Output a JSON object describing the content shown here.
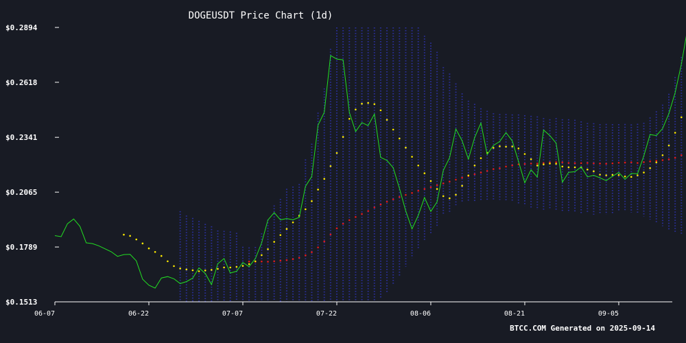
{
  "chart_data": {
    "type": "line",
    "title": "DOGEUSDT Price Chart (1d)",
    "footer": "BTCC.COM Generated on 2025-09-14",
    "ylim": [
      0.1513,
      0.2894
    ],
    "yticks": [
      "$0.1513",
      "$0.1789",
      "$0.2065",
      "$0.2341",
      "$0.2618",
      "$0.2894"
    ],
    "yticks_values": [
      0.1513,
      0.1789,
      0.2065,
      0.2341,
      0.2618,
      0.2894
    ],
    "xticks": [
      "06-07",
      "06-22",
      "07-07",
      "07-22",
      "08-06",
      "08-21",
      "09-05"
    ],
    "xticks_index": [
      0,
      15,
      30,
      45,
      60,
      75,
      90
    ],
    "x_start": "2025-06-07",
    "grid": false,
    "colors": {
      "background": "#181b24",
      "price": "#22e022",
      "ma_short": "#ffeb00",
      "ma_long": "#e01b1b",
      "band": "#2a2f9a",
      "axis": "#ffffff"
    },
    "series": [
      {
        "key": "price",
        "style": "line",
        "values": [
          0.1846,
          0.1841,
          0.1906,
          0.193,
          0.1893,
          0.181,
          0.1806,
          0.1795,
          0.178,
          0.1765,
          0.1742,
          0.1751,
          0.1752,
          0.1719,
          0.1627,
          0.1597,
          0.1582,
          0.1633,
          0.164,
          0.1629,
          0.1605,
          0.1615,
          0.1632,
          0.1684,
          0.1656,
          0.16,
          0.1705,
          0.1731,
          0.1658,
          0.1667,
          0.1711,
          0.169,
          0.1731,
          0.181,
          0.1925,
          0.1962,
          0.1926,
          0.1932,
          0.1926,
          0.1938,
          0.2094,
          0.2144,
          0.2402,
          0.2467,
          0.2752,
          0.2735,
          0.2731,
          0.2466,
          0.237,
          0.2415,
          0.24,
          0.2458,
          0.224,
          0.2225,
          0.2188,
          0.2084,
          0.1971,
          0.188,
          0.1948,
          0.2038,
          0.1968,
          0.2016,
          0.2174,
          0.2239,
          0.2383,
          0.2324,
          0.2231,
          0.234,
          0.2413,
          0.2255,
          0.23,
          0.232,
          0.2365,
          0.2323,
          0.222,
          0.2112,
          0.2178,
          0.2141,
          0.2378,
          0.235,
          0.2312,
          0.2115,
          0.2165,
          0.2168,
          0.2192,
          0.2142,
          0.215,
          0.2137,
          0.2123,
          0.2145,
          0.2164,
          0.213,
          0.2159,
          0.2158,
          0.2247,
          0.2355,
          0.235,
          0.2385,
          0.246,
          0.2566,
          0.271,
          0.289,
          0.2885
        ]
      },
      {
        "key": "ma_short",
        "style": "dots",
        "values": [
          null,
          null,
          null,
          null,
          null,
          null,
          null,
          null,
          null,
          null,
          null,
          0.1851,
          0.1845,
          0.1827,
          0.1807,
          0.1782,
          0.1764,
          0.1744,
          0.1717,
          0.1693,
          0.1681,
          0.1676,
          0.1672,
          0.1667,
          0.1671,
          0.1674,
          0.1679,
          0.1686,
          0.1686,
          0.1689,
          0.1694,
          0.1703,
          0.1717,
          0.1748,
          0.1778,
          0.1815,
          0.1849,
          0.188,
          0.1913,
          0.1946,
          0.1979,
          0.202,
          0.2078,
          0.2132,
          0.2196,
          0.2262,
          0.2343,
          0.2434,
          0.2481,
          0.251,
          0.2514,
          0.2508,
          0.2477,
          0.2429,
          0.238,
          0.2335,
          0.2289,
          0.2243,
          0.2199,
          0.216,
          0.2121,
          0.2081,
          0.2045,
          0.2034,
          0.2052,
          0.2097,
          0.2149,
          0.2199,
          0.2236,
          0.2263,
          0.2288,
          0.2296,
          0.2294,
          0.2295,
          0.2285,
          0.2257,
          0.2231,
          0.2199,
          0.2205,
          0.2209,
          0.2208,
          0.2194,
          0.219,
          0.219,
          0.219,
          0.2179,
          0.217,
          0.2153,
          0.215,
          0.2152,
          0.2151,
          0.2144,
          0.2142,
          0.215,
          0.2164,
          0.2186,
          0.2215,
          0.2251,
          0.23,
          0.2364,
          0.2442,
          0.253,
          0.2621
        ]
      },
      {
        "key": "ma_long",
        "style": "dots",
        "values": [
          null,
          null,
          null,
          null,
          null,
          null,
          null,
          null,
          null,
          null,
          null,
          null,
          null,
          null,
          null,
          null,
          null,
          null,
          null,
          null,
          null,
          null,
          null,
          null,
          null,
          null,
          null,
          null,
          null,
          null,
          null,
          0.1716,
          0.1715,
          0.1716,
          0.1715,
          0.1717,
          0.172,
          0.1723,
          0.1728,
          0.1735,
          0.1747,
          0.1763,
          0.1787,
          0.1817,
          0.1852,
          0.1883,
          0.1906,
          0.1924,
          0.194,
          0.1955,
          0.197,
          0.1988,
          0.2003,
          0.2017,
          0.2029,
          0.2041,
          0.2051,
          0.2061,
          0.2072,
          0.2081,
          0.209,
          0.21,
          0.2109,
          0.2118,
          0.2128,
          0.2138,
          0.2146,
          0.2155,
          0.2164,
          0.2172,
          0.2181,
          0.2185,
          0.2194,
          0.22,
          0.2205,
          0.2207,
          0.2209,
          0.2209,
          0.2212,
          0.2215,
          0.2216,
          0.2215,
          0.2212,
          0.2211,
          0.2211,
          0.2212,
          0.221,
          0.2209,
          0.2208,
          0.221,
          0.2213,
          0.2214,
          0.2215,
          0.2212,
          0.2216,
          0.222,
          0.2223,
          0.2226,
          0.223,
          0.2238,
          0.2251,
          0.2268,
          0.2283
        ]
      },
      {
        "key": "band",
        "style": "band",
        "upper": [
          null,
          null,
          null,
          null,
          null,
          null,
          null,
          null,
          null,
          null,
          null,
          null,
          null,
          null,
          null,
          null,
          null,
          null,
          null,
          null,
          0.1969,
          0.1947,
          0.1935,
          0.192,
          0.1905,
          0.1893,
          0.1872,
          0.187,
          0.1867,
          0.186,
          0.179,
          0.1787,
          0.1789,
          0.1858,
          0.1927,
          0.1998,
          0.2031,
          0.2082,
          0.2093,
          0.2106,
          0.223,
          0.2309,
          0.2465,
          0.2587,
          0.2786,
          0.2917,
          0.2996,
          0.3026,
          0.3045,
          0.305,
          0.3046,
          0.3046,
          0.3035,
          0.3018,
          0.3004,
          0.2978,
          0.2949,
          0.294,
          0.2904,
          0.2852,
          0.2817,
          0.2771,
          0.2694,
          0.2662,
          0.2612,
          0.2562,
          0.2525,
          0.2509,
          0.2487,
          0.2474,
          0.2462,
          0.2458,
          0.2458,
          0.2456,
          0.2456,
          0.2452,
          0.2449,
          0.2446,
          0.2438,
          0.2432,
          0.2438,
          0.2432,
          0.2432,
          0.2429,
          0.2421,
          0.2413,
          0.2412,
          0.2407,
          0.2408,
          0.2407,
          0.2407,
          0.2408,
          0.2406,
          0.2409,
          0.2414,
          0.2441,
          0.2472,
          0.2505,
          0.256,
          0.2644,
          0.2745,
          0.285,
          0.2948
        ],
        "lower": [
          null,
          null,
          null,
          null,
          null,
          null,
          null,
          null,
          null,
          null,
          null,
          null,
          null,
          null,
          null,
          null,
          null,
          null,
          null,
          null,
          0.1488,
          0.1494,
          0.1499,
          0.1502,
          0.1506,
          0.1512,
          0.151,
          0.1502,
          0.1507,
          0.15,
          0.1497,
          0.1496,
          0.1494,
          0.1497,
          0.1496,
          0.1497,
          0.1497,
          0.1496,
          0.1496,
          0.1496,
          0.1477,
          0.1463,
          0.1436,
          0.1428,
          0.1409,
          0.1404,
          0.1418,
          0.1434,
          0.1451,
          0.1463,
          0.1475,
          0.1497,
          0.1527,
          0.1557,
          0.1599,
          0.1639,
          0.169,
          0.1733,
          0.1776,
          0.182,
          0.1855,
          0.1893,
          0.1949,
          0.1966,
          0.1993,
          0.2013,
          0.2015,
          0.2017,
          0.202,
          0.202,
          0.2024,
          0.2026,
          0.202,
          0.2019,
          0.2006,
          0.1996,
          0.1987,
          0.1976,
          0.1974,
          0.1976,
          0.1976,
          0.1968,
          0.1962,
          0.1961,
          0.1959,
          0.1958,
          0.1952,
          0.1952,
          0.1952,
          0.196,
          0.1969,
          0.1969,
          0.1962,
          0.1953,
          0.1943,
          0.1927,
          0.1906,
          0.1894,
          0.1877,
          0.1861,
          0.1852,
          0.184,
          0.1831
        ]
      }
    ]
  }
}
